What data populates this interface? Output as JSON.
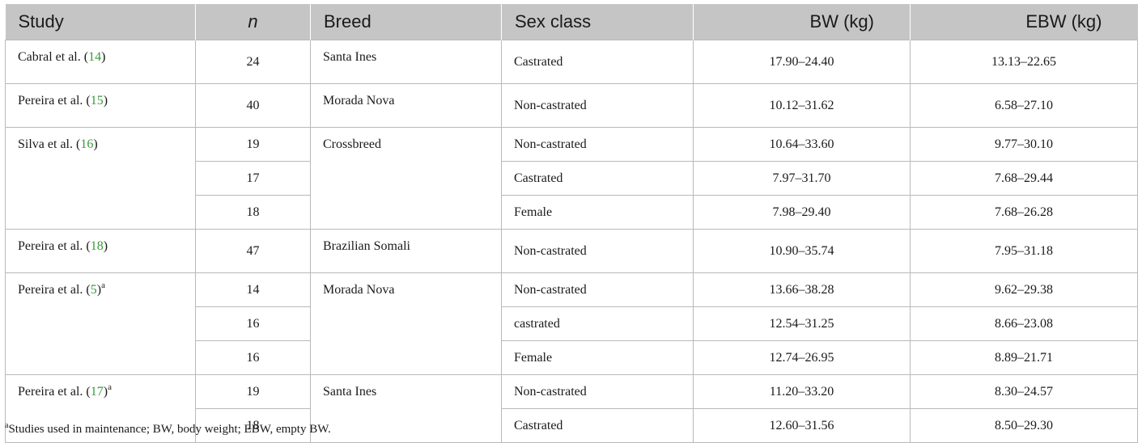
{
  "headers": [
    "Study",
    "n",
    "Breed",
    "Sex class",
    "BW (kg)",
    "EBW (kg)"
  ],
  "groups": [
    {
      "study_prefix": "Cabral et al. (",
      "study_ref": "14",
      "study_suffix": ")",
      "study_sup": "",
      "breed": "Santa Ines",
      "rows": [
        {
          "n": "24",
          "sex": "Castrated",
          "bw": "17.90–24.40",
          "ebw": "13.13–22.65"
        }
      ]
    },
    {
      "study_prefix": "Pereira et al. (",
      "study_ref": "15",
      "study_suffix": ")",
      "study_sup": "",
      "breed": "Morada Nova",
      "rows": [
        {
          "n": "40",
          "sex": "Non-castrated",
          "bw": "10.12–31.62",
          "ebw": "6.58–27.10"
        }
      ]
    },
    {
      "study_prefix": "Silva et al. (",
      "study_ref": "16",
      "study_suffix": ")",
      "study_sup": "",
      "breed": "Crossbreed",
      "rows": [
        {
          "n": "19",
          "sex": "Non-castrated",
          "bw": "10.64–33.60",
          "ebw": "9.77–30.10"
        },
        {
          "n": "17",
          "sex": "Castrated",
          "bw": "7.97–31.70",
          "ebw": "7.68–29.44"
        },
        {
          "n": "18",
          "sex": "Female",
          "bw": "7.98–29.40",
          "ebw": "7.68–26.28"
        }
      ]
    },
    {
      "study_prefix": "Pereira et al. (",
      "study_ref": "18",
      "study_suffix": ")",
      "study_sup": "",
      "breed": "Brazilian Somali",
      "rows": [
        {
          "n": "47",
          "sex": "Non-castrated",
          "bw": "10.90–35.74",
          "ebw": "7.95–31.18"
        }
      ]
    },
    {
      "study_prefix": "Pereira et al. (",
      "study_ref": "5",
      "study_suffix": ")",
      "study_sup": "a",
      "breed": "Morada Nova",
      "rows": [
        {
          "n": "14",
          "sex": "Non-castrated",
          "bw": "13.66–38.28",
          "ebw": "9.62–29.38"
        },
        {
          "n": "16",
          "sex": "castrated",
          "bw": "12.54–31.25",
          "ebw": "8.66–23.08"
        },
        {
          "n": "16",
          "sex": "Female",
          "bw": "12.74–26.95",
          "ebw": "8.89–21.71"
        }
      ]
    },
    {
      "study_prefix": "Pereira et al. (",
      "study_ref": "17",
      "study_suffix": ")",
      "study_sup": "a",
      "breed": "Santa Ines",
      "rows": [
        {
          "n": "19",
          "sex": "Non-castrated",
          "bw": "11.20–33.20",
          "ebw": "8.30–24.57"
        },
        {
          "n": "18",
          "sex": "Castrated",
          "bw": "12.60–31.56",
          "ebw": "8.50–29.30"
        }
      ]
    }
  ],
  "footnote": {
    "marker": "a",
    "text": "Studies used in maintenance; BW, body weight; EBW, empty BW."
  },
  "colors": {
    "header_bg": "#c5c5c5",
    "ref_link": "#3a9a3a",
    "border": "#b9b9b9"
  }
}
